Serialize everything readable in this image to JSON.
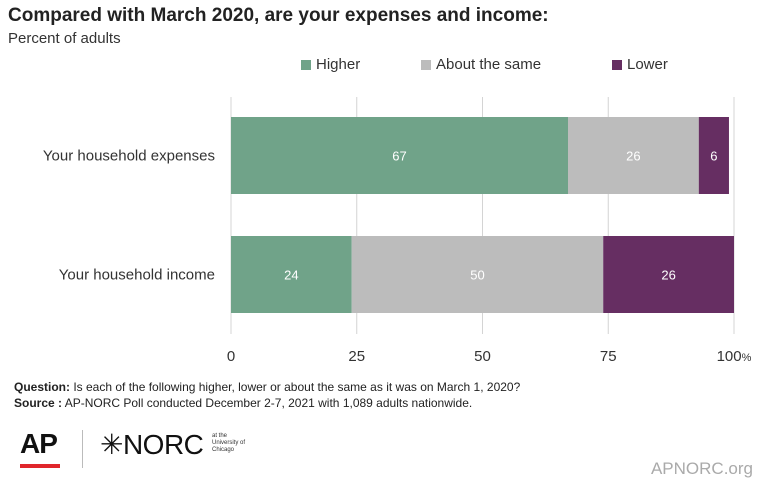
{
  "chart_data": {
    "type": "bar",
    "orientation": "horizontal",
    "stacked": true,
    "title": "Compared with March 2020, are your expenses and income:",
    "subtitle": "Percent of adults",
    "categories": [
      "Your household expenses",
      "Your household income"
    ],
    "series": [
      {
        "name": "Higher",
        "color": "#70a389",
        "values": [
          67,
          24
        ]
      },
      {
        "name": "About the same",
        "color": "#bcbcbc",
        "values": [
          26,
          50
        ]
      },
      {
        "name": "Lower",
        "color": "#662e62",
        "values": [
          6,
          26
        ]
      }
    ],
    "xlim": [
      0,
      100
    ],
    "xticks": [
      0,
      25,
      50,
      75,
      100
    ],
    "xtick_suffix_last": "%",
    "grid": "vertical",
    "legend": "top"
  },
  "notes": {
    "question_label": "Question:",
    "question_text": "Is each of the following higher, lower or about the same as it was on March 1, 2020?",
    "source_label": "Source :",
    "source_text": "AP-NORC Poll conducted December 2-7, 2021 with 1,089 adults nationwide."
  },
  "footer": {
    "ap_logo": "AP",
    "norc_logo": "✳NORC",
    "norc_sub": "at the University of Chicago",
    "site": "APNORC.org"
  }
}
